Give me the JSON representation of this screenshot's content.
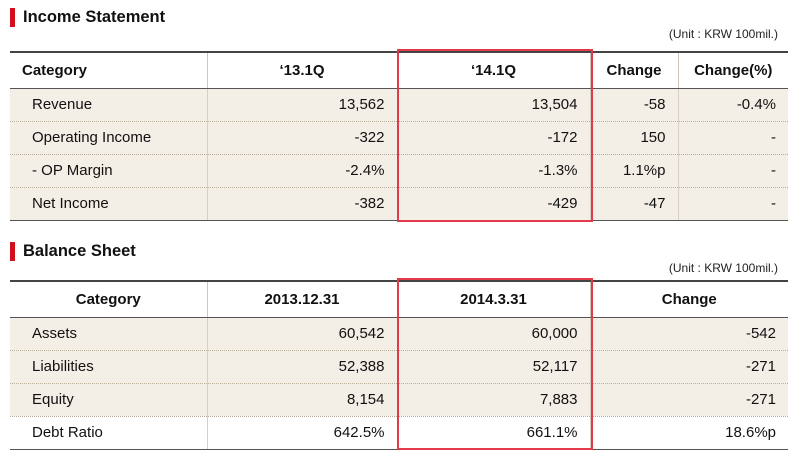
{
  "income_statement": {
    "title": "Income Statement",
    "unit": "(Unit : KRW 100mil.)",
    "headers": [
      "Category",
      "‘13.1Q",
      "‘14.1Q",
      "Change",
      "Change(%)"
    ],
    "rows": [
      {
        "category": "Revenue",
        "v1": "13,562",
        "v2": "13,504",
        "change": "-58",
        "change_pct": "-0.4%"
      },
      {
        "category": "Operating Income",
        "v1": "-322",
        "v2": "-172",
        "change": "150",
        "change_pct": "-"
      },
      {
        "category": "- OP Margin",
        "v1": "-2.4%",
        "v2": "-1.3%",
        "change": "1.1%p",
        "change_pct": "-"
      },
      {
        "category": "Net Income",
        "v1": "-382",
        "v2": "-429",
        "change": "-47",
        "change_pct": "-"
      }
    ]
  },
  "balance_sheet": {
    "title": "Balance Sheet",
    "unit": "(Unit : KRW 100mil.)",
    "headers": [
      "Category",
      "2013.12.31",
      "2014.3.31",
      "Change"
    ],
    "rows": [
      {
        "category": "Assets",
        "v1": "60,542",
        "v2": "60,000",
        "change": "-542"
      },
      {
        "category": "Liabilities",
        "v1": "52,388",
        "v2": "52,117",
        "change": "-271"
      },
      {
        "category": "Equity",
        "v1": "8,154",
        "v2": "7,883",
        "change": "-271"
      },
      {
        "category": "Debt Ratio",
        "v1": "642.5%",
        "v2": "661.1%",
        "change": "18.6%p"
      }
    ]
  },
  "colors": {
    "accent": "#d0101d",
    "highlight": "#e23a4a",
    "row_bg": "#f3eee6"
  }
}
